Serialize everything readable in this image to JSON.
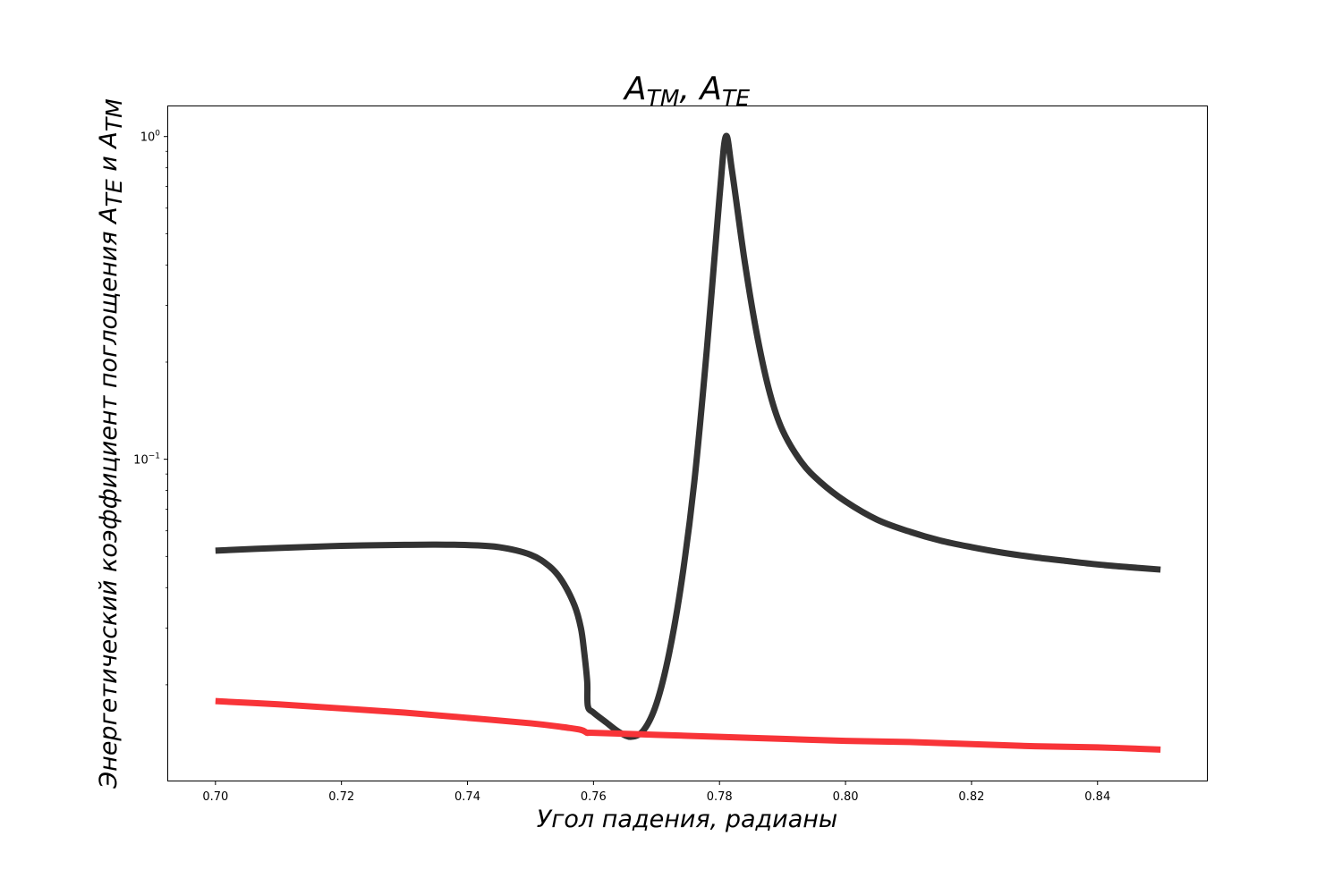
{
  "chart_data": {
    "type": "line",
    "title": {
      "main": "A",
      "sub1": "TM",
      "sep": ", ",
      "main2": "A",
      "sub2": "TE"
    },
    "xlabel": "Угол падения, радианы",
    "ylabel": {
      "text": "Энергетический коэффициент поглощения A",
      "sub1": "TE",
      "mid": " и A",
      "sub2": "TM"
    },
    "xlim": [
      0.6925,
      0.8575
    ],
    "ylim": [
      0.0101,
      1.24
    ],
    "yscale": "log",
    "xticks": [
      {
        "value": 0.7,
        "label": "0.70"
      },
      {
        "value": 0.72,
        "label": "0.72"
      },
      {
        "value": 0.74,
        "label": "0.74"
      },
      {
        "value": 0.76,
        "label": "0.76"
      },
      {
        "value": 0.78,
        "label": "0.78"
      },
      {
        "value": 0.8,
        "label": "0.80"
      },
      {
        "value": 0.82,
        "label": "0.82"
      },
      {
        "value": 0.84,
        "label": "0.84"
      }
    ],
    "yticks": [
      {
        "value": 1,
        "base": "10",
        "exp": "0"
      },
      {
        "value": 0.1,
        "base": "10",
        "exp": "−1"
      }
    ],
    "grid": false,
    "series": [
      {
        "color": "#333333",
        "x": [
          0.7,
          0.71,
          0.72,
          0.73,
          0.735,
          0.74,
          0.745,
          0.75,
          0.753,
          0.755,
          0.757,
          0.758,
          0.7585,
          0.759,
          0.7591,
          0.76,
          0.762,
          0.764,
          0.766,
          0.768,
          0.77,
          0.772,
          0.774,
          0.776,
          0.778,
          0.78,
          0.781,
          0.782,
          0.784,
          0.786,
          0.788,
          0.79,
          0.793,
          0.796,
          0.8,
          0.805,
          0.81,
          0.815,
          0.82,
          0.825,
          0.83,
          0.835,
          0.84,
          0.845,
          0.85
        ],
        "y": [
          0.0521,
          0.0531,
          0.0539,
          0.0543,
          0.0544,
          0.0542,
          0.0534,
          0.0506,
          0.0466,
          0.042,
          0.0352,
          0.03,
          0.0255,
          0.0205,
          0.0172,
          0.0164,
          0.0153,
          0.0143,
          0.0138,
          0.0145,
          0.0175,
          0.025,
          0.042,
          0.085,
          0.22,
          0.65,
          1.0,
          0.78,
          0.41,
          0.24,
          0.16,
          0.123,
          0.098,
          0.085,
          0.074,
          0.065,
          0.0598,
          0.056,
          0.0534,
          0.0513,
          0.0497,
          0.0484,
          0.0472,
          0.0463,
          0.0455
        ]
      },
      {
        "color": "#f83438",
        "x": [
          0.7,
          0.71,
          0.72,
          0.73,
          0.74,
          0.75,
          0.755,
          0.758,
          0.759,
          0.76,
          0.77,
          0.78,
          0.79,
          0.8,
          0.81,
          0.82,
          0.83,
          0.84,
          0.85
        ],
        "y": [
          0.0178,
          0.0174,
          0.0169,
          0.0164,
          0.0158,
          0.0152,
          0.0148,
          0.0145,
          0.0142,
          0.0142,
          0.014,
          0.0138,
          0.0136,
          0.0134,
          0.0133,
          0.0131,
          0.0129,
          0.0128,
          0.0126
        ]
      }
    ]
  }
}
